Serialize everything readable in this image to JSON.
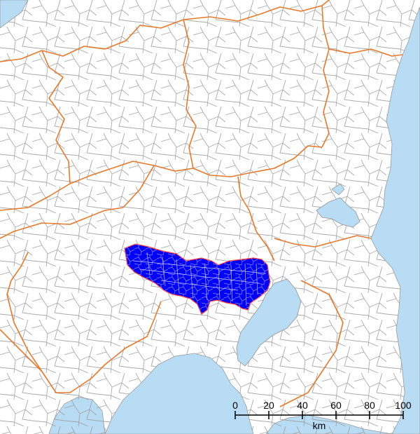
{
  "map": {
    "colors": {
      "land": "#ffffff",
      "water": "#b8dcf4",
      "municipal_border": "#9a9a9a",
      "prefecture_border": "#e8782a",
      "highlight_fill": "#0000ff",
      "highlight_border": "#ff3b3b"
    },
    "scale_bar": {
      "ticks": [
        "0",
        "20",
        "40",
        "60",
        "80",
        "100"
      ],
      "unit": "km"
    }
  }
}
